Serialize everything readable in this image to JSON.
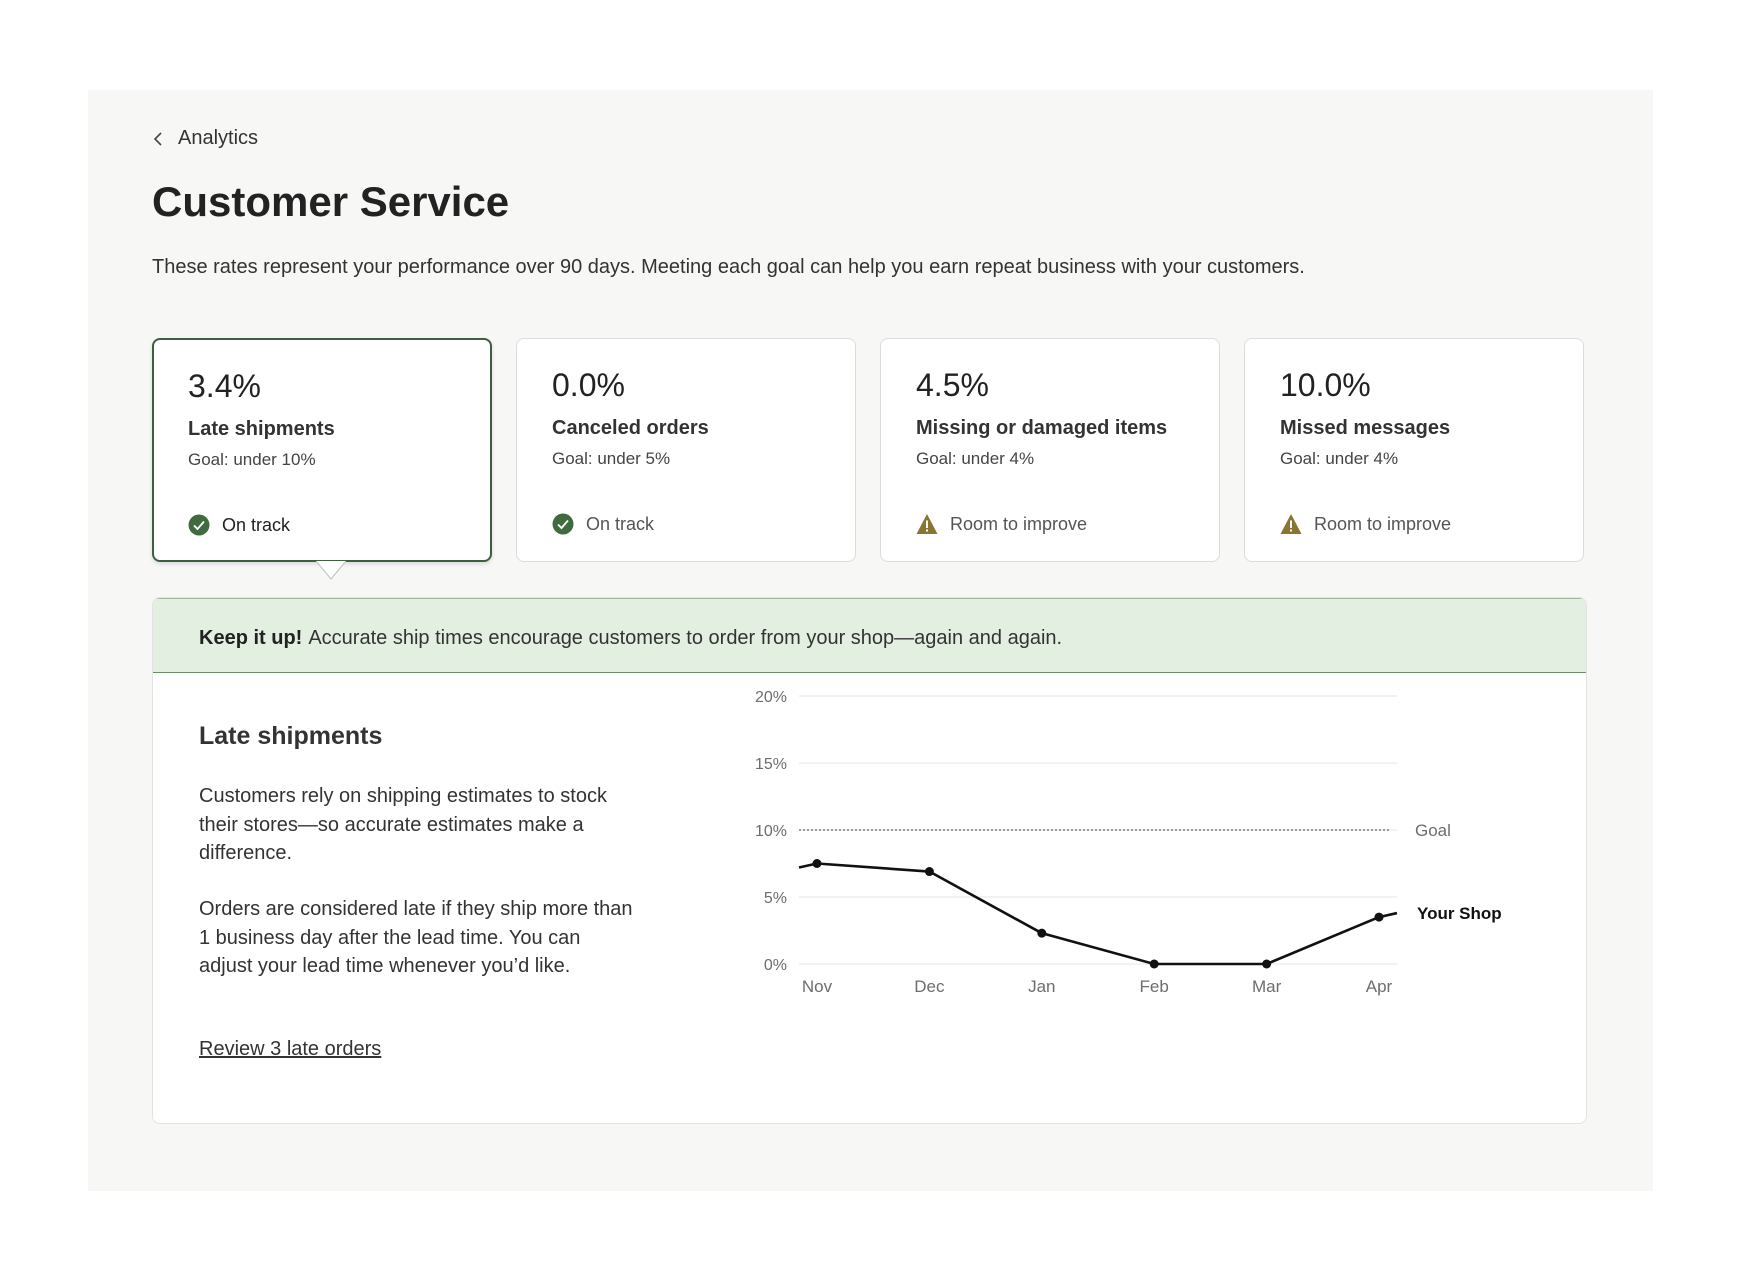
{
  "nav": {
    "back_label": "Analytics"
  },
  "page": {
    "title": "Customer Service",
    "description": "These rates represent your performance over 90 days. Meeting each goal can help you earn repeat business with your customers."
  },
  "cards": [
    {
      "value": "3.4%",
      "label": "Late shipments",
      "goal": "Goal: under 10%",
      "status": "On track",
      "status_icon": "check-circle-icon",
      "selected": true
    },
    {
      "value": "0.0%",
      "label": "Canceled orders",
      "goal": "Goal: under 5%",
      "status": "On track",
      "status_icon": "check-circle-icon",
      "selected": false
    },
    {
      "value": "4.5%",
      "label": "Missing or damaged items",
      "goal": "Goal: under 4%",
      "status": "Room to improve",
      "status_icon": "warning-triangle-icon",
      "selected": false
    },
    {
      "value": "10.0%",
      "label": "Missed messages",
      "goal": "Goal: under 4%",
      "status": "Room to improve",
      "status_icon": "warning-triangle-icon",
      "selected": false
    }
  ],
  "banner": {
    "strong": "Keep it up!",
    "text": "Accurate ship times encourage customers to order from your shop—again and again."
  },
  "detail": {
    "title": "Late shipments",
    "paragraph1": "Customers rely on shipping estimates to stock their stores—so accurate estimates make a difference.",
    "paragraph2": "Orders are considered late if they ship more than 1 business day after the lead time. You can adjust your lead time whenever you’d like.",
    "link": "Review 3 late orders"
  },
  "colors": {
    "accent_green": "#3f5d3f",
    "check_green": "#3f6b3f",
    "warning_gold": "#8a7431",
    "banner_bg": "#e3efe1"
  },
  "chart_data": {
    "type": "line",
    "categories": [
      "Nov",
      "Dec",
      "Jan",
      "Feb",
      "Mar",
      "Apr"
    ],
    "y_ticks": [
      "0%",
      "5%",
      "10%",
      "15%",
      "20%"
    ],
    "ylim": [
      0,
      20
    ],
    "grid": true,
    "goal": {
      "label": "Goal",
      "value": 10
    },
    "series": [
      {
        "name": "Your Shop",
        "x": [
          -0.16,
          0,
          1,
          2,
          3,
          4,
          5,
          5.16
        ],
        "values": [
          7.2,
          7.5,
          6.9,
          2.3,
          0,
          0,
          3.5,
          3.8
        ],
        "markers": [
          false,
          true,
          true,
          true,
          true,
          true,
          true,
          false
        ]
      }
    ]
  }
}
